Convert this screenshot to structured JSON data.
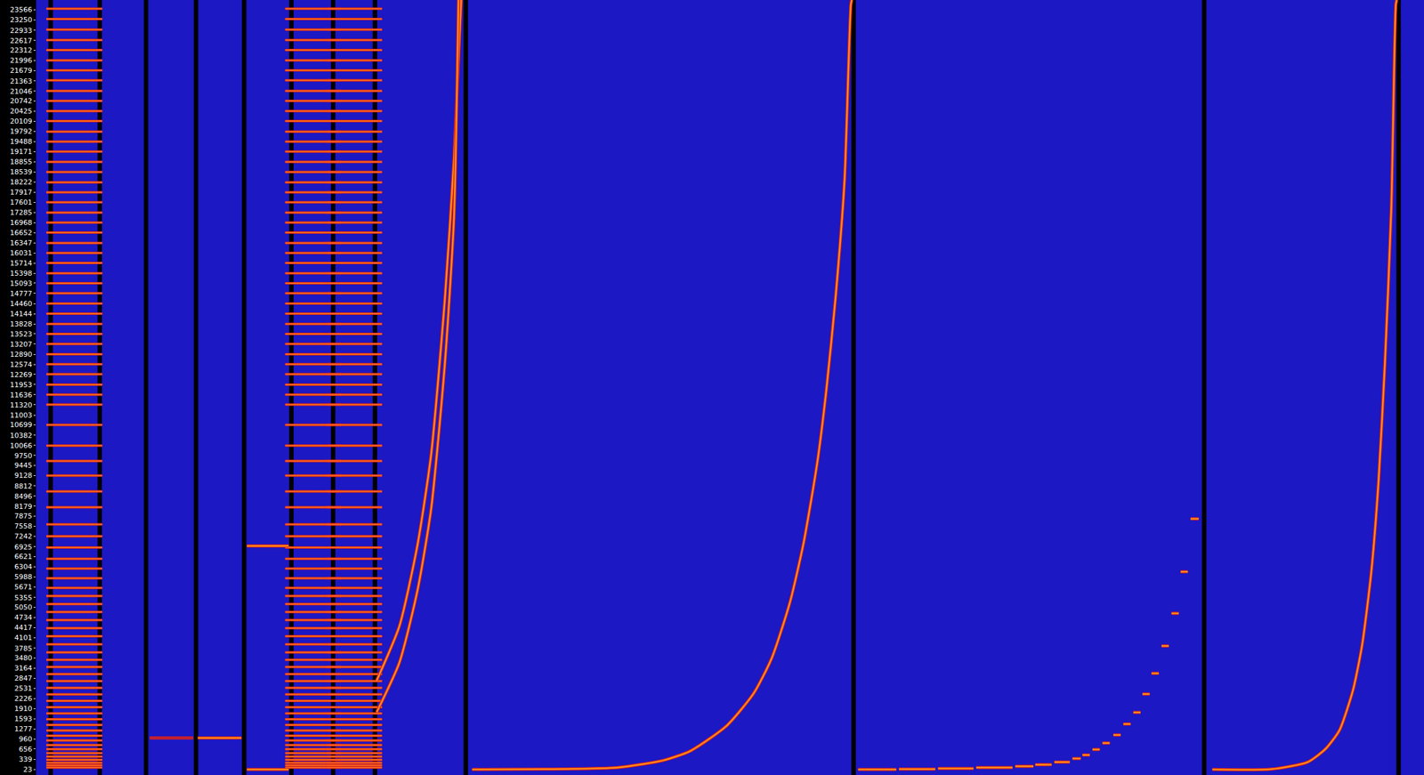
{
  "chart_data": {
    "type": "line",
    "tick_labels": "y",
    "grid": false,
    "xlim": [
      40,
      1568
    ],
    "ylim": [
      -150,
      23870
    ],
    "yticks": [
      23,
      339,
      656,
      960,
      1277,
      1593,
      1910,
      2226,
      2531,
      2847,
      3164,
      3480,
      3785,
      4101,
      4417,
      4734,
      5050,
      5355,
      5671,
      5988,
      6304,
      6621,
      6925,
      7242,
      7558,
      7875,
      8179,
      8496,
      8812,
      9128,
      9445,
      9750,
      10066,
      10382,
      10699,
      11003,
      11320,
      11636,
      11953,
      12269,
      12574,
      12890,
      13207,
      13523,
      13828,
      14144,
      14460,
      14777,
      15093,
      15398,
      15714,
      16031,
      16347,
      16652,
      16968,
      17285,
      17601,
      17917,
      18222,
      18539,
      18855,
      19171,
      19488,
      19792,
      20109,
      20425,
      20742,
      21046,
      21363,
      21679,
      21996,
      22312,
      22617,
      22933,
      23250,
      23566
    ],
    "series": [
      {
        "type": "line",
        "color": "#000000",
        "x": [
          56,
          56,
          null,
          110,
          110,
          null,
          161,
          161,
          null,
          216,
          216,
          null,
          269,
          269,
          null,
          321,
          321,
          null,
          367,
          367,
          null,
          413,
          413,
          null,
          513,
          513,
          null,
          940,
          940,
          null,
          1326,
          1326,
          null,
          1540,
          1540
        ],
        "values": [
          -150,
          23870,
          null,
          -150,
          23870,
          null,
          -150,
          23870,
          null,
          -150,
          23870,
          null,
          -150,
          23870,
          null,
          -150,
          23870,
          null,
          -150,
          23870,
          null,
          -150,
          23870,
          null,
          -150,
          23870,
          null,
          -150,
          23870,
          null,
          -150,
          23870,
          null,
          -150,
          23870
        ]
      },
      {
        "type": "scatter",
        "marker": "line-ew",
        "color": "#ff6a1a",
        "x": [
          82,
          82,
          82,
          82,
          82,
          82,
          82,
          82,
          82,
          82,
          82,
          82,
          82,
          82,
          82,
          82,
          82,
          82,
          82,
          82,
          82,
          82,
          82,
          82,
          82,
          82,
          82,
          82,
          82,
          82,
          82,
          82,
          82,
          82,
          82,
          82,
          82,
          82,
          82,
          82,
          82,
          82,
          82,
          82,
          82,
          82,
          82,
          82,
          82,
          82,
          82,
          82,
          82,
          82,
          82,
          82,
          82,
          82,
          82,
          82,
          82,
          82,
          82,
          82,
          82,
          82,
          82,
          82,
          82,
          82,
          82,
          82,
          82,
          82,
          82,
          82,
          82,
          82,
          82,
          82,
          82,
          82,
          82
        ],
        "values": [
          23600,
          23280,
          22950,
          22630,
          22320,
          22000,
          21690,
          21380,
          21050,
          20740,
          20430,
          20120,
          19790,
          19480,
          19170,
          18850,
          18540,
          18220,
          17910,
          17600,
          17280,
          16970,
          16660,
          16340,
          16030,
          15720,
          15400,
          15090,
          14780,
          14460,
          14150,
          13830,
          13520,
          13210,
          12890,
          12580,
          12270,
          11950,
          11640,
          11330,
          10700,
          10060,
          9580,
          9130,
          8640,
          8150,
          7620,
          7250,
          6900,
          6550,
          6250,
          5950,
          5650,
          5400,
          5150,
          4900,
          4650,
          4400,
          4150,
          3900,
          3650,
          3420,
          3200,
          2980,
          2760,
          2550,
          2350,
          2150,
          1950,
          1760,
          1580,
          1400,
          1230,
          1070,
          920,
          780,
          650,
          530,
          420,
          320,
          230,
          150,
          80
        ]
      },
      {
        "type": "scatter",
        "marker": "line-ew",
        "color": "#ff6a1a",
        "x": [
          345,
          345,
          345,
          345,
          345,
          345,
          345,
          345,
          345,
          345,
          345,
          345,
          345,
          345,
          345,
          345,
          345,
          345,
          345,
          345,
          345,
          345,
          345,
          345,
          345,
          345,
          345,
          345,
          345,
          345,
          345,
          345,
          345,
          345,
          345,
          345,
          345,
          345,
          345,
          345,
          345,
          345,
          345,
          345,
          345,
          345,
          345,
          345,
          345,
          345,
          345,
          345,
          345,
          345,
          345,
          345,
          345,
          345,
          345,
          345,
          345,
          345,
          345,
          345,
          345,
          345,
          345,
          345,
          345,
          345,
          345,
          345,
          345,
          345,
          345,
          345,
          345,
          345,
          345,
          345,
          345,
          345,
          345
        ],
        "values": [
          23600,
          23280,
          22950,
          22630,
          22320,
          22000,
          21690,
          21380,
          21050,
          20740,
          20430,
          20120,
          19790,
          19480,
          19170,
          18850,
          18540,
          18220,
          17910,
          17600,
          17280,
          16970,
          16660,
          16340,
          16030,
          15720,
          15400,
          15090,
          14780,
          14460,
          14150,
          13830,
          13520,
          13210,
          12890,
          12580,
          12270,
          11950,
          11640,
          11330,
          10700,
          10060,
          9580,
          9130,
          8640,
          8150,
          7620,
          7250,
          6900,
          6550,
          6250,
          5950,
          5650,
          5400,
          5150,
          4900,
          4650,
          4400,
          4150,
          3900,
          3650,
          3420,
          3200,
          2980,
          2760,
          2550,
          2350,
          2150,
          1950,
          1760,
          1580,
          1400,
          1230,
          1070,
          920,
          780,
          650,
          530,
          420,
          320,
          230,
          150,
          80
        ]
      },
      {
        "type": "scatter",
        "marker": "line-ew",
        "color": "#ff6a1a",
        "x": [
          390,
          390,
          390,
          390,
          390,
          390,
          390,
          390,
          390,
          390,
          390,
          390,
          390,
          390,
          390,
          390,
          390,
          390,
          390,
          390,
          390,
          390,
          390,
          390,
          390,
          390,
          390,
          390,
          390,
          390,
          390,
          390,
          390,
          390,
          390,
          390,
          390,
          390,
          390,
          390,
          390,
          390,
          390,
          390,
          390,
          390,
          390,
          390,
          390,
          390,
          390,
          390,
          390,
          390,
          390,
          390,
          390,
          390,
          390,
          390,
          390,
          390,
          390,
          390,
          390,
          390,
          390,
          390,
          390,
          390,
          390,
          390,
          390,
          390,
          390,
          390,
          390,
          390,
          390,
          390,
          390,
          390,
          390
        ],
        "values": [
          23600,
          23280,
          22950,
          22630,
          22320,
          22000,
          21690,
          21380,
          21050,
          20740,
          20430,
          20120,
          19790,
          19480,
          19170,
          18850,
          18540,
          18220,
          17910,
          17600,
          17280,
          16970,
          16660,
          16340,
          16030,
          15720,
          15400,
          15090,
          14780,
          14460,
          14150,
          13830,
          13520,
          13210,
          12890,
          12580,
          12270,
          11950,
          11640,
          11330,
          10700,
          10060,
          9580,
          9130,
          8640,
          8150,
          7620,
          7250,
          6900,
          6550,
          6250,
          5950,
          5650,
          5400,
          5150,
          4900,
          4650,
          4400,
          4150,
          3900,
          3650,
          3420,
          3200,
          2980,
          2760,
          2550,
          2350,
          2150,
          1950,
          1760,
          1580,
          1400,
          1230,
          1070,
          920,
          780,
          650,
          530,
          420,
          320,
          230,
          150,
          80
        ]
      },
      {
        "type": "line",
        "color": "#b8203c",
        "x": [
          165,
          213
        ],
        "values": [
          1000,
          1000
        ]
      },
      {
        "type": "line",
        "color": "#ff8c1a",
        "x": [
          218,
          266
        ],
        "values": [
          1000,
          1000
        ]
      },
      {
        "type": "line",
        "color": "#ff8c1a",
        "x": [
          272,
          318
        ],
        "values": [
          6950,
          6950
        ]
      },
      {
        "type": "line",
        "color": "#ff8c1a",
        "x": [
          272,
          318
        ],
        "values": [
          20,
          20
        ]
      },
      {
        "type": "line",
        "color": "#ff8c1a",
        "x": [
          415,
          440,
          460,
          475,
          490,
          500,
          508
        ],
        "values": [
          2780,
          4470,
          7000,
          9810,
          14600,
          18900,
          23870
        ]
      },
      {
        "type": "line",
        "color": "#ff8c1a",
        "x": [
          415,
          440,
          460,
          475,
          490,
          500,
          505
        ],
        "values": [
          1800,
          3340,
          5590,
          8120,
          12600,
          17100,
          23870
        ]
      },
      {
        "type": "line",
        "color": "#ff8c1a",
        "x": [
          520,
          600,
          680,
          730,
          760,
          800,
          830,
          850,
          870,
          885,
          900,
          910,
          920,
          930,
          937,
          938
        ],
        "values": [
          20,
          30,
          80,
          300,
          590,
          1370,
          2380,
          3480,
          5210,
          7050,
          9530,
          11780,
          14600,
          18270,
          23730,
          23870
        ]
      },
      {
        "type": "line",
        "color": "#ff8c1a",
        "x": [
          945,
          987,
          null,
          990,
          1030,
          null,
          1033,
          1072,
          null,
          1075,
          1115,
          null,
          1118,
          1138,
          null,
          1140,
          1158,
          null,
          1161,
          1178,
          null,
          1181,
          1190,
          null,
          1192,
          1200,
          null,
          1203,
          1211,
          null,
          1214,
          1222,
          null,
          1226,
          1234,
          null,
          1237,
          1245,
          null,
          1248,
          1256,
          null,
          1258,
          1266,
          null,
          1268,
          1276,
          null,
          1279,
          1287,
          null,
          1290,
          1298,
          null,
          1300,
          1308,
          null,
          1311,
          1320
        ],
        "values": [
          20,
          20,
          null,
          30,
          30,
          null,
          50,
          50,
          null,
          80,
          80,
          null,
          120,
          120,
          null,
          170,
          170,
          null,
          250,
          250,
          null,
          360,
          360,
          null,
          470,
          470,
          null,
          640,
          640,
          null,
          840,
          840,
          null,
          1090,
          1090,
          null,
          1430,
          1430,
          null,
          1790,
          1790,
          null,
          2360,
          2360,
          null,
          3000,
          3000,
          null,
          3850,
          3850,
          null,
          4860,
          4860,
          null,
          6150,
          6150,
          null,
          7790,
          7790
        ]
      },
      {
        "type": "line",
        "color": "#ff8c1a",
        "x": [
          1335,
          1400,
          1440,
          1460,
          1475,
          1490,
          1500,
          1510,
          1518,
          1525,
          1532,
          1537,
          1538
        ],
        "values": [
          20,
          30,
          250,
          670,
          1240,
          2500,
          3900,
          6150,
          8970,
          12630,
          17400,
          23730,
          23870
        ]
      }
    ]
  }
}
